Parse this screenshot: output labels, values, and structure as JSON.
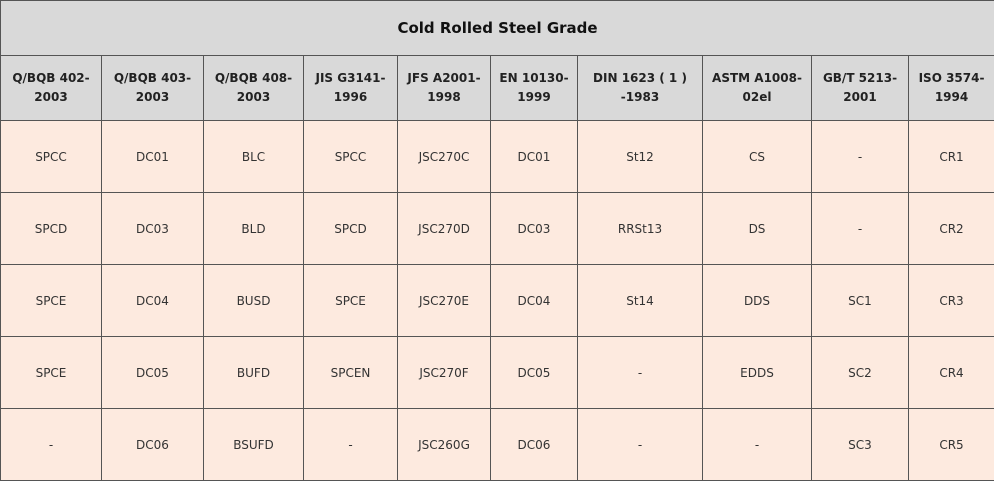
{
  "table": {
    "title": "Cold Rolled Steel Grade",
    "header": [
      "Q/BQB 402-2003",
      "Q/BQB 403-2003",
      "Q/BQB 408-2003",
      "JIS G3141-1996",
      "JFS A2001-1998",
      "EN 10130-1999",
      "DIN 1623 ( 1 ) -1983",
      "ASTM A1008-02el",
      "GB/T 5213-2001",
      "ISO 3574-1994"
    ],
    "rows": [
      [
        "SPCC",
        "DC01",
        "BLC",
        "SPCC",
        "JSC270C",
        "DC01",
        "St12",
        "CS",
        "-",
        "CR1"
      ],
      [
        "SPCD",
        "DC03",
        "BLD",
        "SPCD",
        "JSC270D",
        "DC03",
        "RRSt13",
        "DS",
        "-",
        "CR2"
      ],
      [
        "SPCE",
        "DC04",
        "BUSD",
        "SPCE",
        "JSC270E",
        "DC04",
        "St14",
        "DDS",
        "SC1",
        "CR3"
      ],
      [
        "SPCE",
        "DC05",
        "BUFD",
        "SPCEN",
        "JSC270F",
        "DC05",
        "-",
        "EDDS",
        "SC2",
        "CR4"
      ],
      [
        "-",
        "DC06",
        "BSUFD",
        "-",
        "JSC260G",
        "DC06",
        "-",
        "-",
        "SC3",
        "CR5"
      ]
    ]
  }
}
